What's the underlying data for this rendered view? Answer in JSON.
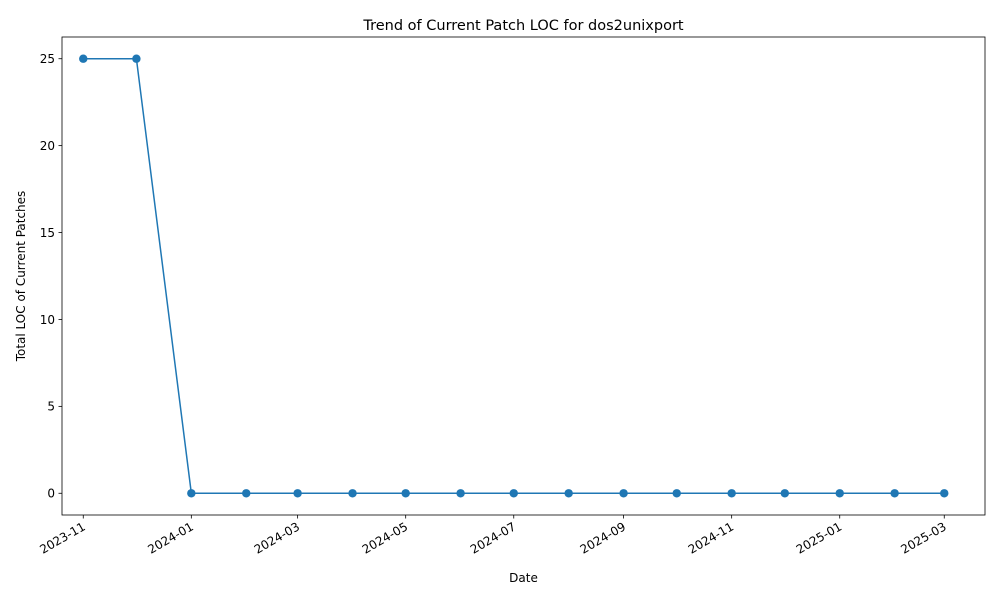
{
  "chart_data": {
    "type": "line",
    "title": "Trend of Current Patch LOC for dos2unixport",
    "xlabel": "Date",
    "ylabel": "Total LOC of Current Patches",
    "x_axis": "date",
    "xlim": [
      "2023-10-20",
      "2025-03-24"
    ],
    "ylim": [
      -1.25,
      26.25
    ],
    "y_ticks": [
      0,
      5,
      10,
      15,
      20,
      25
    ],
    "x_ticks": [
      "2023-11",
      "2024-01",
      "2024-03",
      "2024-05",
      "2024-07",
      "2024-09",
      "2024-11",
      "2025-01",
      "2025-03"
    ],
    "x_tick_dates": [
      "2023-11-01",
      "2024-01-01",
      "2024-03-01",
      "2024-05-01",
      "2024-07-01",
      "2024-09-01",
      "2024-11-01",
      "2025-01-01",
      "2025-03-01"
    ],
    "x": [
      "2023-11-01",
      "2023-12-01",
      "2024-01-01",
      "2024-02-01",
      "2024-03-01",
      "2024-04-01",
      "2024-05-01",
      "2024-06-01",
      "2024-07-01",
      "2024-08-01",
      "2024-09-01",
      "2024-10-01",
      "2024-11-01",
      "2024-12-01",
      "2025-01-01",
      "2025-02-01",
      "2025-03-01"
    ],
    "series": [
      {
        "values": [
          25,
          25,
          0,
          0,
          0,
          0,
          0,
          0,
          0,
          0,
          0,
          0,
          0,
          0,
          0,
          0,
          0
        ],
        "color": "#1f77b4",
        "marker": "circle"
      }
    ],
    "grid": false,
    "legend": "none"
  }
}
